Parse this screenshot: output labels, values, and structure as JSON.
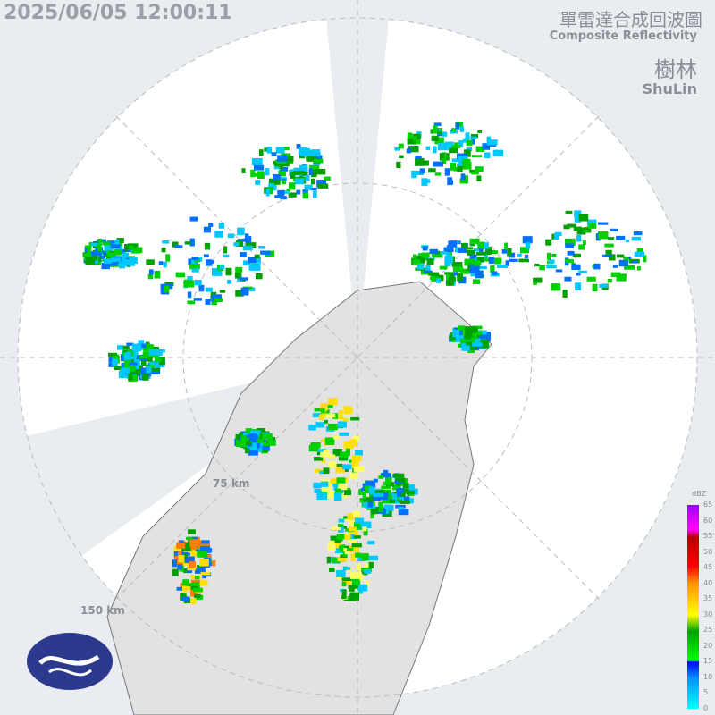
{
  "header": {
    "timestamp": "2025/06/05 12:00:11",
    "product_zh": "單雷達合成回波圖",
    "product_en": "Composite Reflectivity",
    "station_zh": "樹林",
    "station_en": "ShuLin"
  },
  "range_rings": [
    "75 km",
    "150 km"
  ],
  "legend": {
    "unit": "dBZ",
    "ticks": [
      "65",
      "60",
      "55",
      "50",
      "45",
      "40",
      "35",
      "30",
      "25",
      "20",
      "15",
      "10",
      "5",
      "0"
    ],
    "colors": [
      "#00ffff",
      "#0090ff",
      "#0000ff",
      "#00ff00",
      "#00a000",
      "#ffff00",
      "#ff9000",
      "#ff0000",
      "#b00000",
      "#ff00ff",
      "#9900ff"
    ]
  },
  "colors": {
    "background": "#e9edf1",
    "coverage": "#ffffff",
    "land": "#e2e2e2",
    "logo": "#2b3a8c"
  },
  "logo": "central-weather-administration-logo"
}
